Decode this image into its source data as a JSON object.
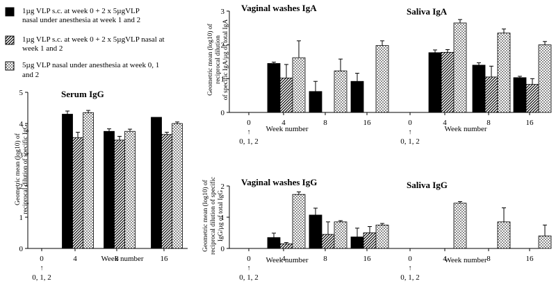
{
  "legend": [
    {
      "key": "sc_nasal_anesthesia",
      "pattern": "solid",
      "text_lines": [
        "1µg VLP s.c. at week 0 + 2 x 5µgVLP",
        "nasal under anesthesia at week 1 and 2"
      ]
    },
    {
      "key": "sc_nasal",
      "pattern": "diagonal",
      "text_lines": [
        "1µg VLP s.c. at week 0 + 2 x 5µgVLP nasal  at",
        "week 1 and 2"
      ]
    },
    {
      "key": "nasal_anesthesia",
      "pattern": "dotted",
      "text_lines": [
        "5µg VLP nasal under anesthesia at week 0, 1",
        "and 2"
      ]
    }
  ],
  "colors": {
    "solid": "#000000",
    "hatch": "#000000",
    "background": "#ffffff"
  },
  "chart_data": [
    {
      "id": "serum-igg",
      "type": "bar",
      "title": "Serum IgG",
      "ylabel_lines": [
        "Geometric mean (log10) of",
        "reciprocal dilution of specific IgG"
      ],
      "xlabel": "Week number",
      "ylim": [
        0,
        5
      ],
      "yticks": [
        0,
        1,
        2,
        3,
        4,
        5
      ],
      "categories": [
        "0",
        "4",
        "8",
        "16"
      ],
      "baseline_note": {
        "arrow": "↑",
        "text": "0, 1, 2"
      },
      "series": [
        {
          "name": "1µg VLP s.c. + 2 x 5µg VLP nasal under anesthesia",
          "pattern": "solid",
          "values": [
            0,
            4.3,
            3.75,
            4.2
          ],
          "errors": [
            0,
            0.1,
            0.08,
            0
          ]
        },
        {
          "name": "1µg VLP s.c. + 2 x 5µg VLP nasal",
          "pattern": "diagonal",
          "values": [
            0,
            3.55,
            3.47,
            3.65
          ],
          "errors": [
            0,
            0.17,
            0.12,
            0.07
          ]
        },
        {
          "name": "5µg VLP nasal under anesthesia",
          "pattern": "dotted",
          "values": [
            0,
            4.35,
            3.75,
            4.0
          ],
          "errors": [
            0,
            0.07,
            0.07,
            0.05
          ]
        }
      ]
    },
    {
      "id": "iga-washes-saliva",
      "type": "bar",
      "titles": [
        "Vaginal washes IgA",
        "Saliva IgA"
      ],
      "ylabel_lines": [
        "Geometric mean (log10) of",
        "reciprocal dilution",
        "of specific IgA/µg of total IgA"
      ],
      "xlabel": "Week number",
      "ylim": [
        0,
        3
      ],
      "yticks": [
        0,
        1,
        2,
        3
      ],
      "groups": [
        {
          "name": "Vaginal washes",
          "categories": [
            "0",
            "4",
            "8",
            "16"
          ],
          "series": [
            {
              "pattern": "solid",
              "values": [
                0,
                1.45,
                0.62,
                0.92
              ],
              "errors": [
                0,
                0.04,
                0.3,
                0.24
              ]
            },
            {
              "pattern": "diagonal",
              "values": [
                0,
                1.02,
                0,
                0
              ],
              "errors": [
                0,
                0.4,
                0,
                0
              ]
            },
            {
              "pattern": "dotted",
              "values": [
                0,
                1.62,
                1.23,
                1.98
              ],
              "errors": [
                0,
                0.5,
                0.35,
                0.14
              ]
            }
          ]
        },
        {
          "name": "Saliva",
          "categories": [
            "0",
            "4",
            "8",
            "16"
          ],
          "series": [
            {
              "pattern": "solid",
              "values": [
                0,
                1.77,
                1.4,
                1.03
              ],
              "errors": [
                0,
                0.08,
                0.07,
                0.04
              ]
            },
            {
              "pattern": "diagonal",
              "values": [
                0,
                1.78,
                1.05,
                0.83
              ],
              "errors": [
                0,
                0.08,
                0.32,
                0.17
              ]
            },
            {
              "pattern": "dotted",
              "values": [
                0,
                2.65,
                2.35,
                2.0
              ],
              "errors": [
                0,
                0.1,
                0.12,
                0.1
              ]
            }
          ]
        }
      ],
      "baseline_note": {
        "arrow": "↑",
        "text": "0, 1, 2"
      }
    },
    {
      "id": "igg-washes-saliva",
      "type": "bar",
      "titles": [
        "Vaginal washes IgG",
        "Saliva IgG"
      ],
      "ylabel_lines": [
        "Geometric mean (log10) of",
        "reciprocal dilution of specific",
        "IgG/µg of total IgG"
      ],
      "xlabel": "Week number",
      "ylim": [
        0,
        2
      ],
      "yticks": [
        0,
        1,
        2
      ],
      "groups": [
        {
          "name": "Vaginal washes",
          "categories": [
            "0",
            "4",
            "8",
            "16"
          ],
          "series": [
            {
              "pattern": "solid",
              "values": [
                0,
                0.35,
                1.07,
                0.37
              ],
              "errors": [
                0,
                0.14,
                0.22,
                0.28
              ]
            },
            {
              "pattern": "diagonal",
              "values": [
                0,
                0.15,
                0.45,
                0.5
              ],
              "errors": [
                0,
                0.04,
                0.4,
                0.2
              ]
            },
            {
              "pattern": "dotted",
              "values": [
                0,
                1.73,
                0.85,
                0.75
              ],
              "errors": [
                0,
                0.08,
                0.04,
                0.05
              ]
            }
          ]
        },
        {
          "name": "Saliva",
          "categories": [
            "0",
            "4",
            "8",
            "16"
          ],
          "series": [
            {
              "pattern": "solid",
              "values": [
                0,
                0,
                0,
                0
              ],
              "errors": [
                0,
                0,
                0,
                0
              ]
            },
            {
              "pattern": "diagonal",
              "values": [
                0,
                0,
                0,
                0
              ],
              "errors": [
                0,
                0,
                0,
                0
              ]
            },
            {
              "pattern": "dotted",
              "values": [
                0,
                1.45,
                0.85,
                0.4
              ],
              "errors": [
                0,
                0.05,
                0.45,
                0.35
              ]
            }
          ]
        }
      ],
      "baseline_note": {
        "arrow": "↑",
        "text": "0, 1, 2"
      }
    }
  ]
}
